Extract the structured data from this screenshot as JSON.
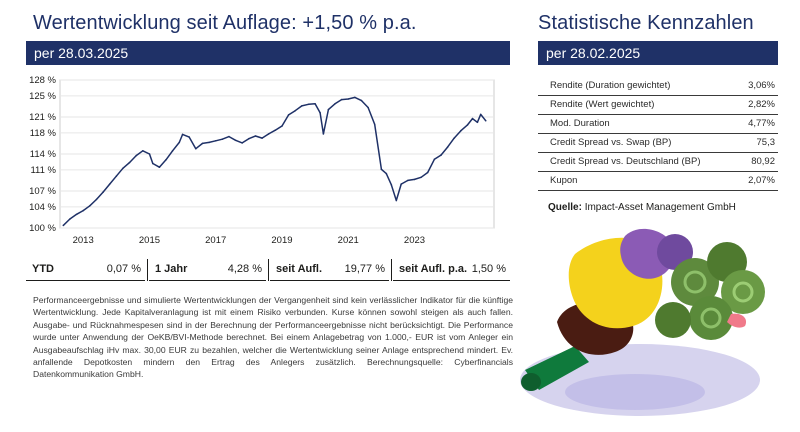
{
  "left": {
    "title": "Wertentwicklung seit Auflage: +1,50 % p.a.",
    "date": "per 28.03.2025"
  },
  "right": {
    "title": "Statistische Kennzahlen",
    "date": "per 28.02.2025"
  },
  "chart_data": {
    "type": "line",
    "title": "",
    "xlabel": "",
    "ylabel": "",
    "x_ticks": [
      "2013",
      "2015",
      "2017",
      "2019",
      "2021",
      "2023"
    ],
    "x_tick_years": [
      2013,
      2015,
      2017,
      2019,
      2021,
      2023
    ],
    "y_ticks": [
      "100 %",
      "104 %",
      "107 %",
      "111 %",
      "114 %",
      "118 %",
      "121 %",
      "125 %",
      "128 %"
    ],
    "y_tick_values": [
      100,
      104,
      107,
      111,
      114,
      118,
      121,
      125,
      128
    ],
    "xlim": [
      2012.3,
      2025.4
    ],
    "ylim": [
      100,
      128
    ],
    "grid": true,
    "line_color": "#1f3167",
    "series": [
      {
        "x": [
          2012.4,
          2012.6,
          2012.8,
          2013.0,
          2013.2,
          2013.4,
          2013.6,
          2013.8,
          2014.0,
          2014.2,
          2014.4,
          2014.6,
          2014.8,
          2015.0,
          2015.1,
          2015.3,
          2015.5,
          2015.7,
          2015.9,
          2016.0,
          2016.2,
          2016.4,
          2016.6,
          2016.8,
          2017.0,
          2017.2,
          2017.4,
          2017.6,
          2017.8,
          2018.0,
          2018.2,
          2018.4,
          2018.6,
          2018.8,
          2019.0,
          2019.2,
          2019.4,
          2019.6,
          2019.8,
          2020.0,
          2020.15,
          2020.25,
          2020.4,
          2020.6,
          2020.8,
          2021.0,
          2021.2,
          2021.4,
          2021.6,
          2021.8,
          2022.0,
          2022.15,
          2022.3,
          2022.45,
          2022.6,
          2022.8,
          2023.0,
          2023.2,
          2023.4,
          2023.6,
          2023.8,
          2024.0,
          2024.2,
          2024.4,
          2024.6,
          2024.75,
          2024.9,
          2025.0,
          2025.15
        ],
        "y": [
          100.5,
          101.7,
          102.6,
          103.3,
          104.2,
          105.4,
          106.8,
          108.3,
          109.8,
          111.3,
          112.4,
          113.7,
          114.6,
          114.0,
          112.2,
          111.5,
          112.9,
          114.6,
          116.2,
          117.7,
          117.2,
          115.0,
          116.0,
          116.2,
          116.5,
          116.8,
          117.3,
          116.6,
          116.1,
          116.9,
          117.4,
          117.0,
          117.8,
          118.5,
          119.3,
          121.4,
          122.2,
          123.1,
          123.4,
          123.5,
          121.8,
          117.8,
          122.4,
          123.5,
          124.3,
          124.4,
          124.7,
          124.1,
          122.8,
          119.6,
          111.1,
          110.3,
          108.2,
          105.2,
          108.3,
          109.0,
          109.2,
          109.6,
          110.5,
          113.0,
          113.8,
          115.3,
          117.0,
          118.4,
          119.5,
          120.7,
          120.0,
          121.5,
          120.3
        ]
      }
    ]
  },
  "performance": [
    {
      "label": "YTD",
      "value": "0,07 %"
    },
    {
      "label": "1 Jahr",
      "value": "4,28 %"
    },
    {
      "label": "seit Aufl.",
      "value": "19,77 %"
    },
    {
      "label": "seit Aufl. p.a.",
      "value": "1,50 %"
    }
  ],
  "disclaimer": "Performanceergebnisse und simulierte Wertentwicklungen der Vergangenheit sind kein verlässlicher Indikator für die künftige Wertentwicklung. Jede Kapitalveranlagung ist mit einem Risiko verbunden. Kurse können sowohl steigen als auch fallen. Ausgabe- und Rücknahmespesen sind in der Berechnung der Performanceergebnisse nicht berücksichtigt. Die Performance wurde unter Anwendung der OeKB/BVI-Methode berechnet. Bei einem Anlagebetrag von 1.000,- EUR ist vom Anleger ein Ausgabeaufschlag iHv max. 30,00 EUR zu bezahlen, welcher die Wertentwicklung seiner Anlage entsprechend mindert. Ev. anfallende Depotkosten mindern den Ertrag des Anlegers zusätzlich. Berechnungsquelle: Cyberfinancials Datenkommunikation GmbH.",
  "stats": [
    {
      "label": "Rendite (Duration gewichtet)",
      "value": "3,06%"
    },
    {
      "label": "Rendite (Wert gewichtet)",
      "value": "2,82%"
    },
    {
      "label": "Mod. Duration",
      "value": "4,77%"
    },
    {
      "label": "Credit Spread vs. Swap (BP)",
      "value": "75,3"
    },
    {
      "label": "Credit Spread vs. Deutschland (BP)",
      "value": "80,92"
    },
    {
      "label": "Kupon",
      "value": "2,07%"
    }
  ],
  "source": {
    "label": "Quelle:",
    "text": "Impact-Asset Management GmbH"
  },
  "colors": {
    "navy": "#1f3167",
    "text": "#1d1d1b"
  },
  "icons": {
    "illustration": "person-hugging-plants-illustration"
  }
}
